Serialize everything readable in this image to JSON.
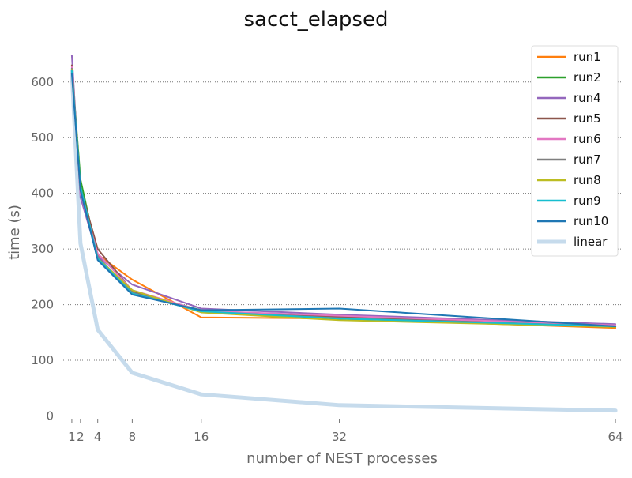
{
  "chart_data": {
    "type": "line",
    "title": "sacct_elapsed",
    "xlabel": "number of NEST processes",
    "ylabel": "time (s)",
    "xlim": [
      0,
      65
    ],
    "ylim": [
      -5,
      665
    ],
    "x": [
      1,
      2,
      4,
      8,
      16,
      32,
      64
    ],
    "xticks": [
      1,
      2,
      4,
      8,
      16,
      32,
      64
    ],
    "xtick_labels": [
      "1",
      "2",
      "4",
      "8",
      "16",
      "32",
      "64"
    ],
    "yticks": [
      0,
      100,
      200,
      300,
      400,
      500,
      600
    ],
    "ytick_labels": [
      "0",
      "100",
      "200",
      "300",
      "400",
      "500",
      "600"
    ],
    "grid": "y-dotted",
    "legend_position": "top-right",
    "series": [
      {
        "name": "run1",
        "color": "#ff7f0e",
        "values": [
          630,
          400,
          290,
          245,
          177,
          175,
          158
        ]
      },
      {
        "name": "run2",
        "color": "#2ca02c",
        "values": [
          625,
          425,
          285,
          223,
          190,
          174,
          160
        ]
      },
      {
        "name": "run4",
        "color": "#9467bd",
        "values": [
          648,
          393,
          287,
          236,
          193,
          182,
          165
        ]
      },
      {
        "name": "run5",
        "color": "#8c564b",
        "values": [
          630,
          410,
          300,
          225,
          188,
          178,
          162
        ]
      },
      {
        "name": "run6",
        "color": "#e377c2",
        "values": [
          628,
          400,
          292,
          226,
          189,
          180,
          163
        ]
      },
      {
        "name": "run7",
        "color": "#7f7f7f",
        "values": [
          624,
          405,
          285,
          222,
          187,
          176,
          161
        ]
      },
      {
        "name": "run8",
        "color": "#bcbd22",
        "values": [
          622,
          408,
          283,
          226,
          186,
          172,
          160
        ]
      },
      {
        "name": "run9",
        "color": "#17becf",
        "values": [
          620,
          412,
          283,
          220,
          188,
          175,
          161
        ]
      },
      {
        "name": "run10",
        "color": "#1f77b4",
        "values": [
          615,
          405,
          280,
          218,
          190,
          193,
          161
        ]
      },
      {
        "name": "linear",
        "color": "#c6dbec",
        "values": [
          620,
          310,
          155,
          77.5,
          38.75,
          19.4,
          9.7
        ],
        "linewidth": 5
      }
    ]
  }
}
